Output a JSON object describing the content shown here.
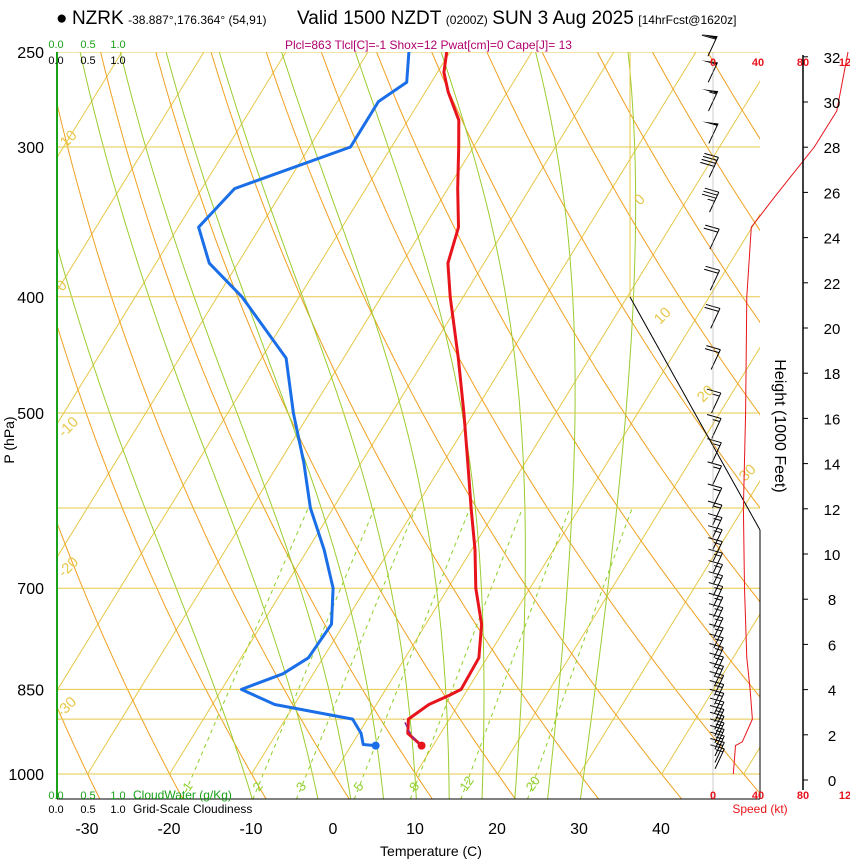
{
  "header": {
    "station": "NZRK",
    "coords": "-38.887°,176.364° (54,91)",
    "valid": "Valid 1500 NZDT",
    "utc": "(0200Z)",
    "date": "SUN 3 Aug 2025",
    "fcst": "[14hrFcst@1620z]"
  },
  "annotation": "Plcl=863 Tlcl[C]=-1 Shox=12 Pwat[cm]=0 Cape[J]= 13",
  "colors": {
    "temperature": "#e8141c",
    "dewpoint": "#1a6fe8",
    "isotherm": "#e6c84a",
    "dry_adiabat": "#f0a020",
    "moist_adiabat": "#9ccc30",
    "mixing_ratio": "#8ed02a",
    "cloud_water": "#1aa11a",
    "wind": "#000000",
    "speed": "#e8141c"
  },
  "chart_data": {
    "type": "skew-t",
    "xlabel": "Temperature (C)",
    "ylabel": "P (hPa)",
    "pressure_ticks": [
      250,
      300,
      400,
      500,
      700,
      850,
      1000
    ],
    "temperature_ticks": [
      -30,
      -20,
      -10,
      0,
      10,
      20,
      30,
      40
    ],
    "temperature_profile": [
      {
        "p": 947,
        "t": 8.6
      },
      {
        "p": 925,
        "t": 6.0
      },
      {
        "p": 900,
        "t": 5.0
      },
      {
        "p": 875,
        "t": 6.4
      },
      {
        "p": 860,
        "t": 8.2
      },
      {
        "p": 850,
        "t": 9.2
      },
      {
        "p": 800,
        "t": 9.0
      },
      {
        "p": 750,
        "t": 6.8
      },
      {
        "p": 700,
        "t": 3.4
      },
      {
        "p": 650,
        "t": 0.4
      },
      {
        "p": 600,
        "t": -3.2
      },
      {
        "p": 550,
        "t": -7.0
      },
      {
        "p": 500,
        "t": -11.2
      },
      {
        "p": 450,
        "t": -16.0
      },
      {
        "p": 400,
        "t": -21.6
      },
      {
        "p": 375,
        "t": -24.4
      },
      {
        "p": 350,
        "t": -25.8
      },
      {
        "p": 325,
        "t": -28.8
      },
      {
        "p": 300,
        "t": -31.8
      },
      {
        "p": 285,
        "t": -33.8
      },
      {
        "p": 270,
        "t": -37.2
      },
      {
        "p": 260,
        "t": -39.2
      },
      {
        "p": 250,
        "t": -40.4
      }
    ],
    "dewpoint_profile": [
      {
        "p": 947,
        "t": 3.0
      },
      {
        "p": 945,
        "t": 1.4
      },
      {
        "p": 925,
        "t": 0.3
      },
      {
        "p": 900,
        "t": -1.8
      },
      {
        "p": 875,
        "t": -12.4
      },
      {
        "p": 850,
        "t": -17.6
      },
      {
        "p": 825,
        "t": -13.7
      },
      {
        "p": 800,
        "t": -11.8
      },
      {
        "p": 750,
        "t": -11.5
      },
      {
        "p": 700,
        "t": -14.0
      },
      {
        "p": 650,
        "t": -18.0
      },
      {
        "p": 600,
        "t": -22.8
      },
      {
        "p": 550,
        "t": -27.0
      },
      {
        "p": 500,
        "t": -32.0
      },
      {
        "p": 450,
        "t": -37.0
      },
      {
        "p": 400,
        "t": -47.0
      },
      {
        "p": 375,
        "t": -53.5
      },
      {
        "p": 350,
        "t": -57.5
      },
      {
        "p": 325,
        "t": -56.0
      },
      {
        "p": 300,
        "t": -45.0
      },
      {
        "p": 275,
        "t": -45.0
      },
      {
        "p": 265,
        "t": -43.0
      },
      {
        "p": 250,
        "t": -45.0
      }
    ],
    "parcel_path": [
      {
        "p": 947,
        "t": 8.6
      },
      {
        "p": 935,
        "t": 7.2
      },
      {
        "p": 920,
        "t": 5.9
      },
      {
        "p": 900,
        "t": 4.4
      }
    ],
    "isotherm_labels": [
      "10",
      "0",
      "-10",
      "-20",
      "-30",
      "0",
      "10",
      "20",
      "30"
    ],
    "mixing_ratio_labels": [
      "1",
      "2",
      "3",
      "5",
      "8",
      "12",
      "20"
    ],
    "cloud_scale_top_green": [
      "0.0",
      "0.5",
      "1.0"
    ],
    "cloud_scale_top_black": [
      "0.0",
      "0.5",
      "1.0"
    ],
    "cloud_scale_bottom_green": [
      "0.0",
      "0.5",
      "1.0"
    ],
    "cloud_scale_bottom_black": [
      "0.0",
      "0.5",
      "1.0"
    ],
    "cloud_water_label": "CloudWater (g/Kg)",
    "cloudiness_label": "Grid-Scale Cloudiness",
    "height_axis_label": "Height (1000 Feet)",
    "height_ticks": [
      0,
      2,
      4,
      6,
      8,
      10,
      12,
      14,
      16,
      18,
      20,
      22,
      24,
      26,
      28,
      30,
      32
    ],
    "speed_ticks_top": [
      "0",
      "40",
      "80",
      "12"
    ],
    "speed_ticks_bottom": [
      "0",
      "40",
      "80",
      "12"
    ],
    "speed_label": "Speed (kt)",
    "speed_profile": [
      {
        "p": 1000,
        "kt": 18
      },
      {
        "p": 947,
        "kt": 20
      },
      {
        "p": 940,
        "kt": 26
      },
      {
        "p": 900,
        "kt": 35
      },
      {
        "p": 850,
        "kt": 33
      },
      {
        "p": 800,
        "kt": 30
      },
      {
        "p": 700,
        "kt": 28
      },
      {
        "p": 600,
        "kt": 27
      },
      {
        "p": 500,
        "kt": 29
      },
      {
        "p": 400,
        "kt": 30
      },
      {
        "p": 350,
        "kt": 34
      },
      {
        "p": 330,
        "kt": 55
      },
      {
        "p": 300,
        "kt": 90
      },
      {
        "p": 280,
        "kt": 110
      },
      {
        "p": 250,
        "kt": 125
      }
    ],
    "wind_barbs": [
      {
        "p": 990,
        "kt": 15
      },
      {
        "p": 978,
        "kt": 15
      },
      {
        "p": 966,
        "kt": 15
      },
      {
        "p": 954,
        "kt": 15
      },
      {
        "p": 942,
        "kt": 15
      },
      {
        "p": 930,
        "kt": 15
      },
      {
        "p": 918,
        "kt": 15
      },
      {
        "p": 905,
        "kt": 15
      },
      {
        "p": 890,
        "kt": 15
      },
      {
        "p": 875,
        "kt": 15
      },
      {
        "p": 860,
        "kt": 15
      },
      {
        "p": 845,
        "kt": 15
      },
      {
        "p": 830,
        "kt": 15
      },
      {
        "p": 815,
        "kt": 15
      },
      {
        "p": 800,
        "kt": 15
      },
      {
        "p": 785,
        "kt": 15
      },
      {
        "p": 770,
        "kt": 15
      },
      {
        "p": 755,
        "kt": 15
      },
      {
        "p": 740,
        "kt": 15
      },
      {
        "p": 725,
        "kt": 15
      },
      {
        "p": 710,
        "kt": 15
      },
      {
        "p": 695,
        "kt": 15
      },
      {
        "p": 680,
        "kt": 15
      },
      {
        "p": 665,
        "kt": 15
      },
      {
        "p": 650,
        "kt": 15
      },
      {
        "p": 635,
        "kt": 15
      },
      {
        "p": 620,
        "kt": 15
      },
      {
        "p": 600,
        "kt": 15
      },
      {
        "p": 575,
        "kt": 15
      },
      {
        "p": 550,
        "kt": 15
      },
      {
        "p": 525,
        "kt": 15
      },
      {
        "p": 500,
        "kt": 15
      },
      {
        "p": 460,
        "kt": 20
      },
      {
        "p": 425,
        "kt": 20
      },
      {
        "p": 395,
        "kt": 20
      },
      {
        "p": 365,
        "kt": 20
      },
      {
        "p": 340,
        "kt": 35
      },
      {
        "p": 318,
        "kt": 40
      },
      {
        "p": 298,
        "kt": 50
      },
      {
        "p": 280,
        "kt": 55
      },
      {
        "p": 265,
        "kt": 50
      },
      {
        "p": 252,
        "kt": 60
      }
    ]
  }
}
